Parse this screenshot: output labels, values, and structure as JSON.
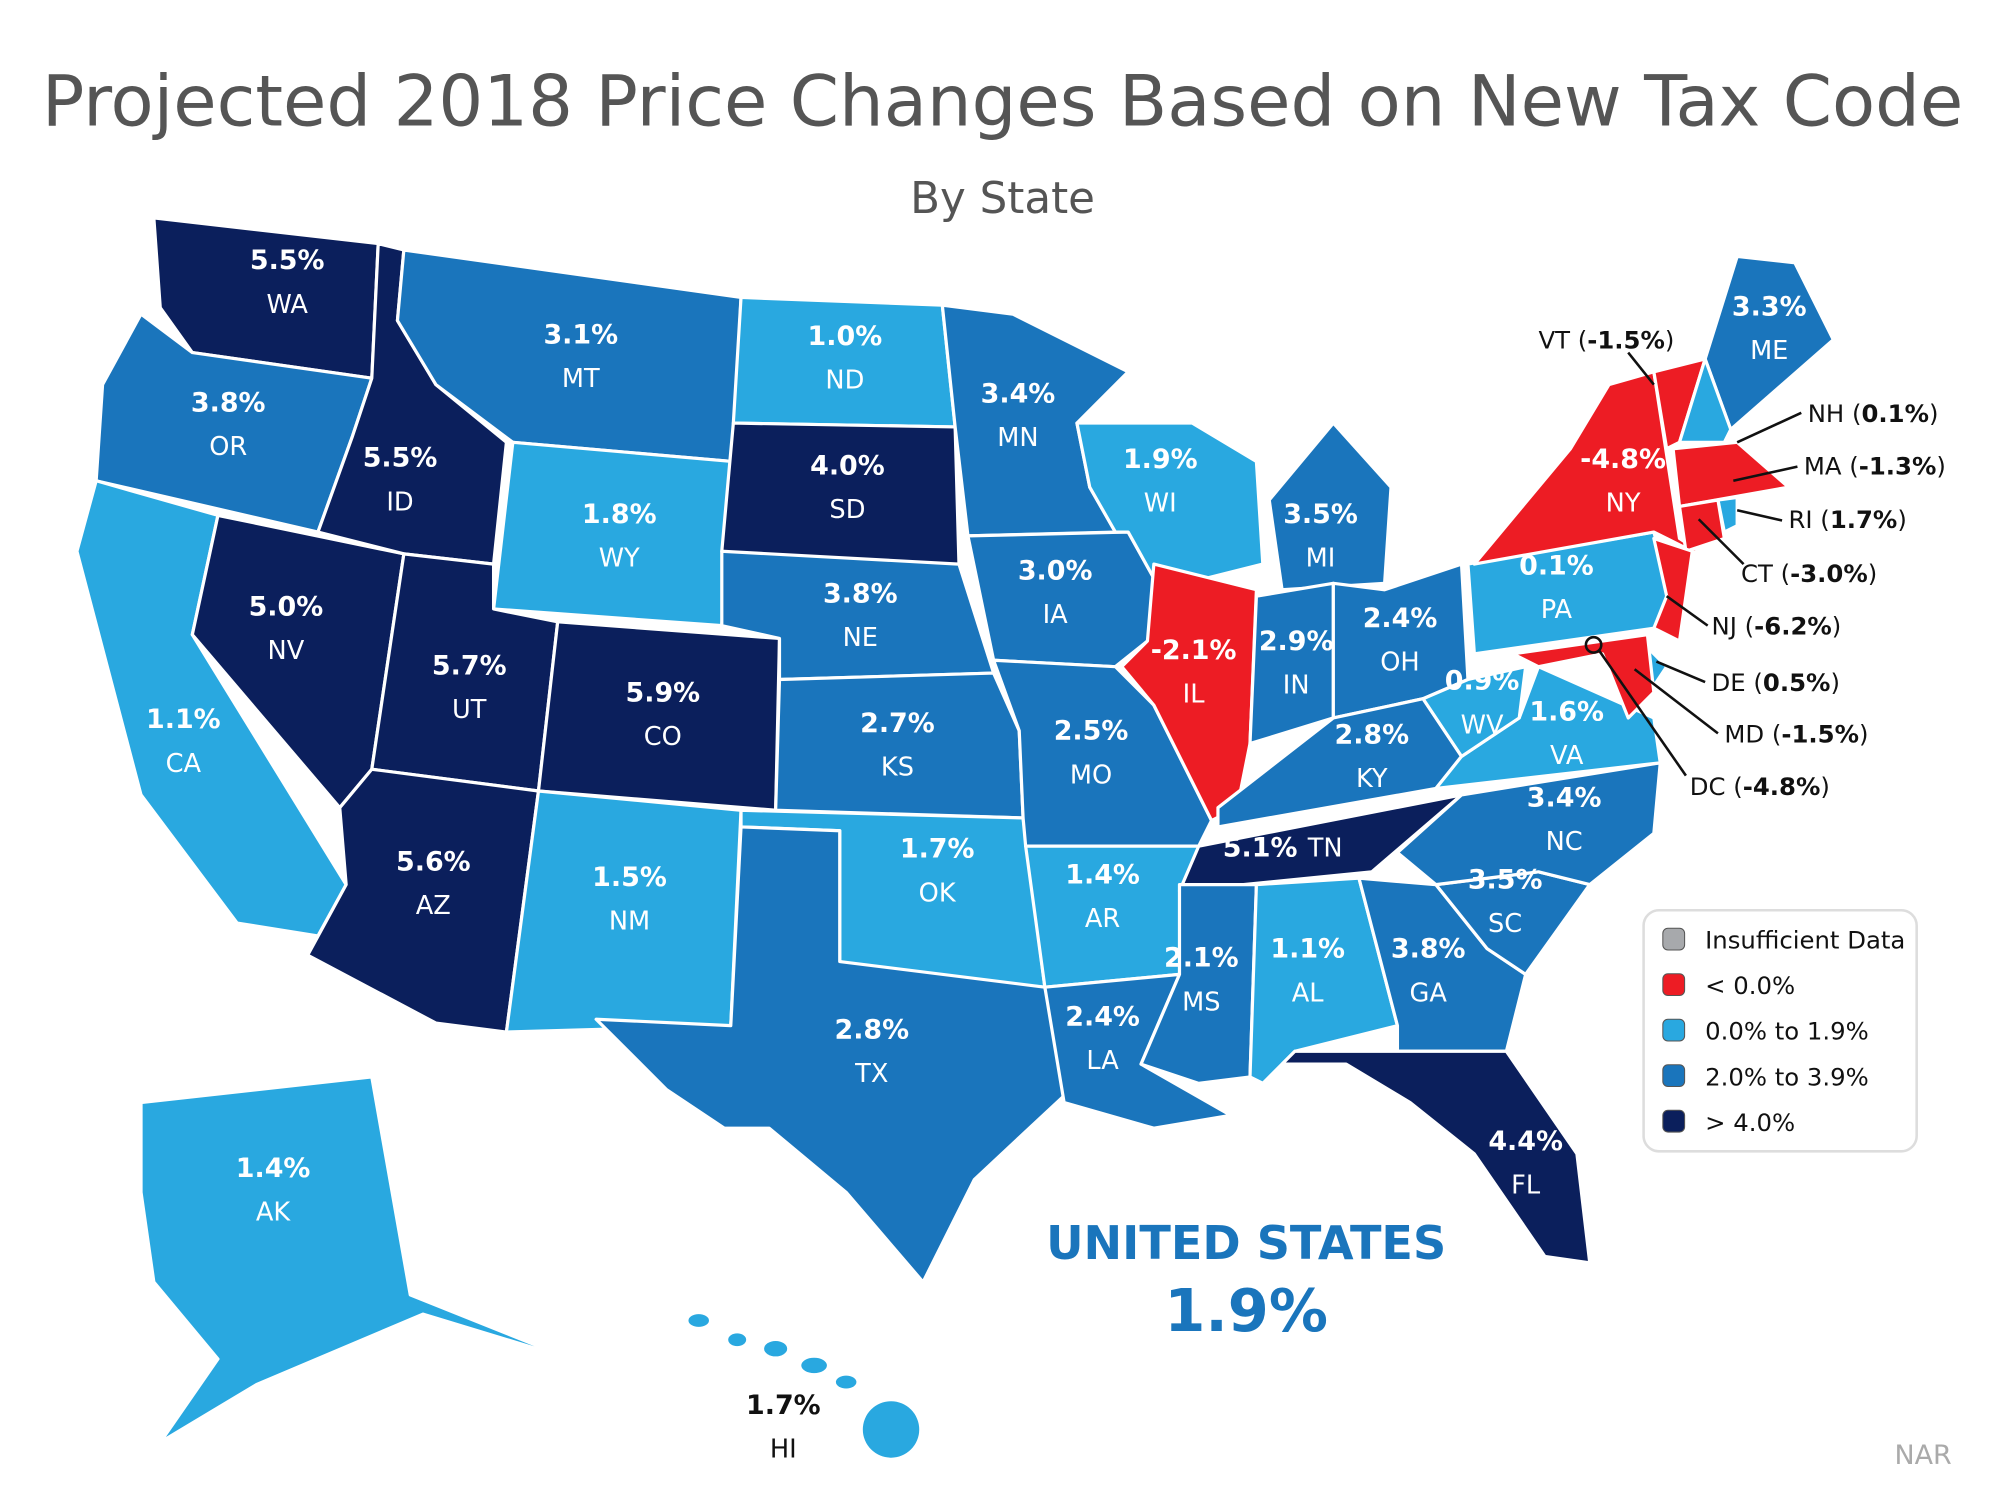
{
  "title": "Projected 2018 Price Changes Based on New Tax Code",
  "subtitle": "By State",
  "colors": {
    "negative": "#ed1c24",
    "low": "#29a8e0",
    "mid": "#1a75bc",
    "high": "#0b1f5c",
    "insufficient": "#a7a9ac"
  },
  "legend": [
    {
      "label": "Insufficient Data",
      "category": "insufficient"
    },
    {
      "label": "< 0.0%",
      "category": "negative"
    },
    {
      "label": "0.0% to 1.9%",
      "category": "low"
    },
    {
      "label": "2.0% to 3.9%",
      "category": "mid"
    },
    {
      "label": "> 4.0%",
      "category": "high"
    }
  ],
  "states": [
    {
      "abbr": "WA",
      "value": "5.5%",
      "category": "high"
    },
    {
      "abbr": "OR",
      "value": "3.8%",
      "category": "mid"
    },
    {
      "abbr": "CA",
      "value": "1.1%",
      "category": "low"
    },
    {
      "abbr": "NV",
      "value": "5.0%",
      "category": "high"
    },
    {
      "abbr": "ID",
      "value": "5.5%",
      "category": "high"
    },
    {
      "abbr": "MT",
      "value": "3.1%",
      "category": "mid"
    },
    {
      "abbr": "WY",
      "value": "1.8%",
      "category": "low"
    },
    {
      "abbr": "UT",
      "value": "5.7%",
      "category": "high"
    },
    {
      "abbr": "CO",
      "value": "5.9%",
      "category": "high"
    },
    {
      "abbr": "AZ",
      "value": "5.6%",
      "category": "high"
    },
    {
      "abbr": "NM",
      "value": "1.5%",
      "category": "low"
    },
    {
      "abbr": "ND",
      "value": "1.0%",
      "category": "low"
    },
    {
      "abbr": "SD",
      "value": "4.0%",
      "category": "high"
    },
    {
      "abbr": "NE",
      "value": "3.8%",
      "category": "mid"
    },
    {
      "abbr": "KS",
      "value": "2.7%",
      "category": "mid"
    },
    {
      "abbr": "OK",
      "value": "1.7%",
      "category": "low"
    },
    {
      "abbr": "TX",
      "value": "2.8%",
      "category": "mid"
    },
    {
      "abbr": "MN",
      "value": "3.4%",
      "category": "mid"
    },
    {
      "abbr": "IA",
      "value": "3.0%",
      "category": "mid"
    },
    {
      "abbr": "MO",
      "value": "2.5%",
      "category": "mid"
    },
    {
      "abbr": "AR",
      "value": "1.4%",
      "category": "low"
    },
    {
      "abbr": "LA",
      "value": "2.4%",
      "category": "mid"
    },
    {
      "abbr": "WI",
      "value": "1.9%",
      "category": "low"
    },
    {
      "abbr": "IL",
      "value": "-2.1%",
      "category": "negative"
    },
    {
      "abbr": "MI",
      "value": "3.5%",
      "category": "mid"
    },
    {
      "abbr": "IN",
      "value": "2.9%",
      "category": "mid"
    },
    {
      "abbr": "OH",
      "value": "2.4%",
      "category": "mid"
    },
    {
      "abbr": "KY",
      "value": "2.8%",
      "category": "mid"
    },
    {
      "abbr": "TN",
      "value": "5.1%",
      "category": "high"
    },
    {
      "abbr": "MS",
      "value": "2.1%",
      "category": "mid"
    },
    {
      "abbr": "AL",
      "value": "1.1%",
      "category": "low"
    },
    {
      "abbr": "GA",
      "value": "3.8%",
      "category": "mid"
    },
    {
      "abbr": "FL",
      "value": "4.4%",
      "category": "high"
    },
    {
      "abbr": "SC",
      "value": "3.5%",
      "category": "mid"
    },
    {
      "abbr": "NC",
      "value": "3.4%",
      "category": "mid"
    },
    {
      "abbr": "VA",
      "value": "1.6%",
      "category": "low"
    },
    {
      "abbr": "WV",
      "value": "0.9%",
      "category": "low"
    },
    {
      "abbr": "PA",
      "value": "0.1%",
      "category": "low"
    },
    {
      "abbr": "NY",
      "value": "-4.8%",
      "category": "negative"
    },
    {
      "abbr": "ME",
      "value": "3.3%",
      "category": "mid"
    },
    {
      "abbr": "AK",
      "value": "1.4%",
      "category": "low"
    },
    {
      "abbr": "HI",
      "value": "1.7%",
      "category": "low"
    },
    {
      "abbr": "VT",
      "value": "-1.5%",
      "category": "negative"
    },
    {
      "abbr": "NH",
      "value": "0.1%",
      "category": "low"
    },
    {
      "abbr": "MA",
      "value": "-1.3%",
      "category": "negative"
    },
    {
      "abbr": "RI",
      "value": "1.7%",
      "category": "low"
    },
    {
      "abbr": "CT",
      "value": "-3.0%",
      "category": "negative"
    },
    {
      "abbr": "NJ",
      "value": "-6.2%",
      "category": "negative"
    },
    {
      "abbr": "DE",
      "value": "0.5%",
      "category": "low"
    },
    {
      "abbr": "MD",
      "value": "-1.5%",
      "category": "negative"
    },
    {
      "abbr": "DC",
      "value": "-4.8%",
      "category": "negative"
    }
  ],
  "national": {
    "label": "UNITED STATES",
    "value": "1.9%"
  },
  "source": "NAR"
}
